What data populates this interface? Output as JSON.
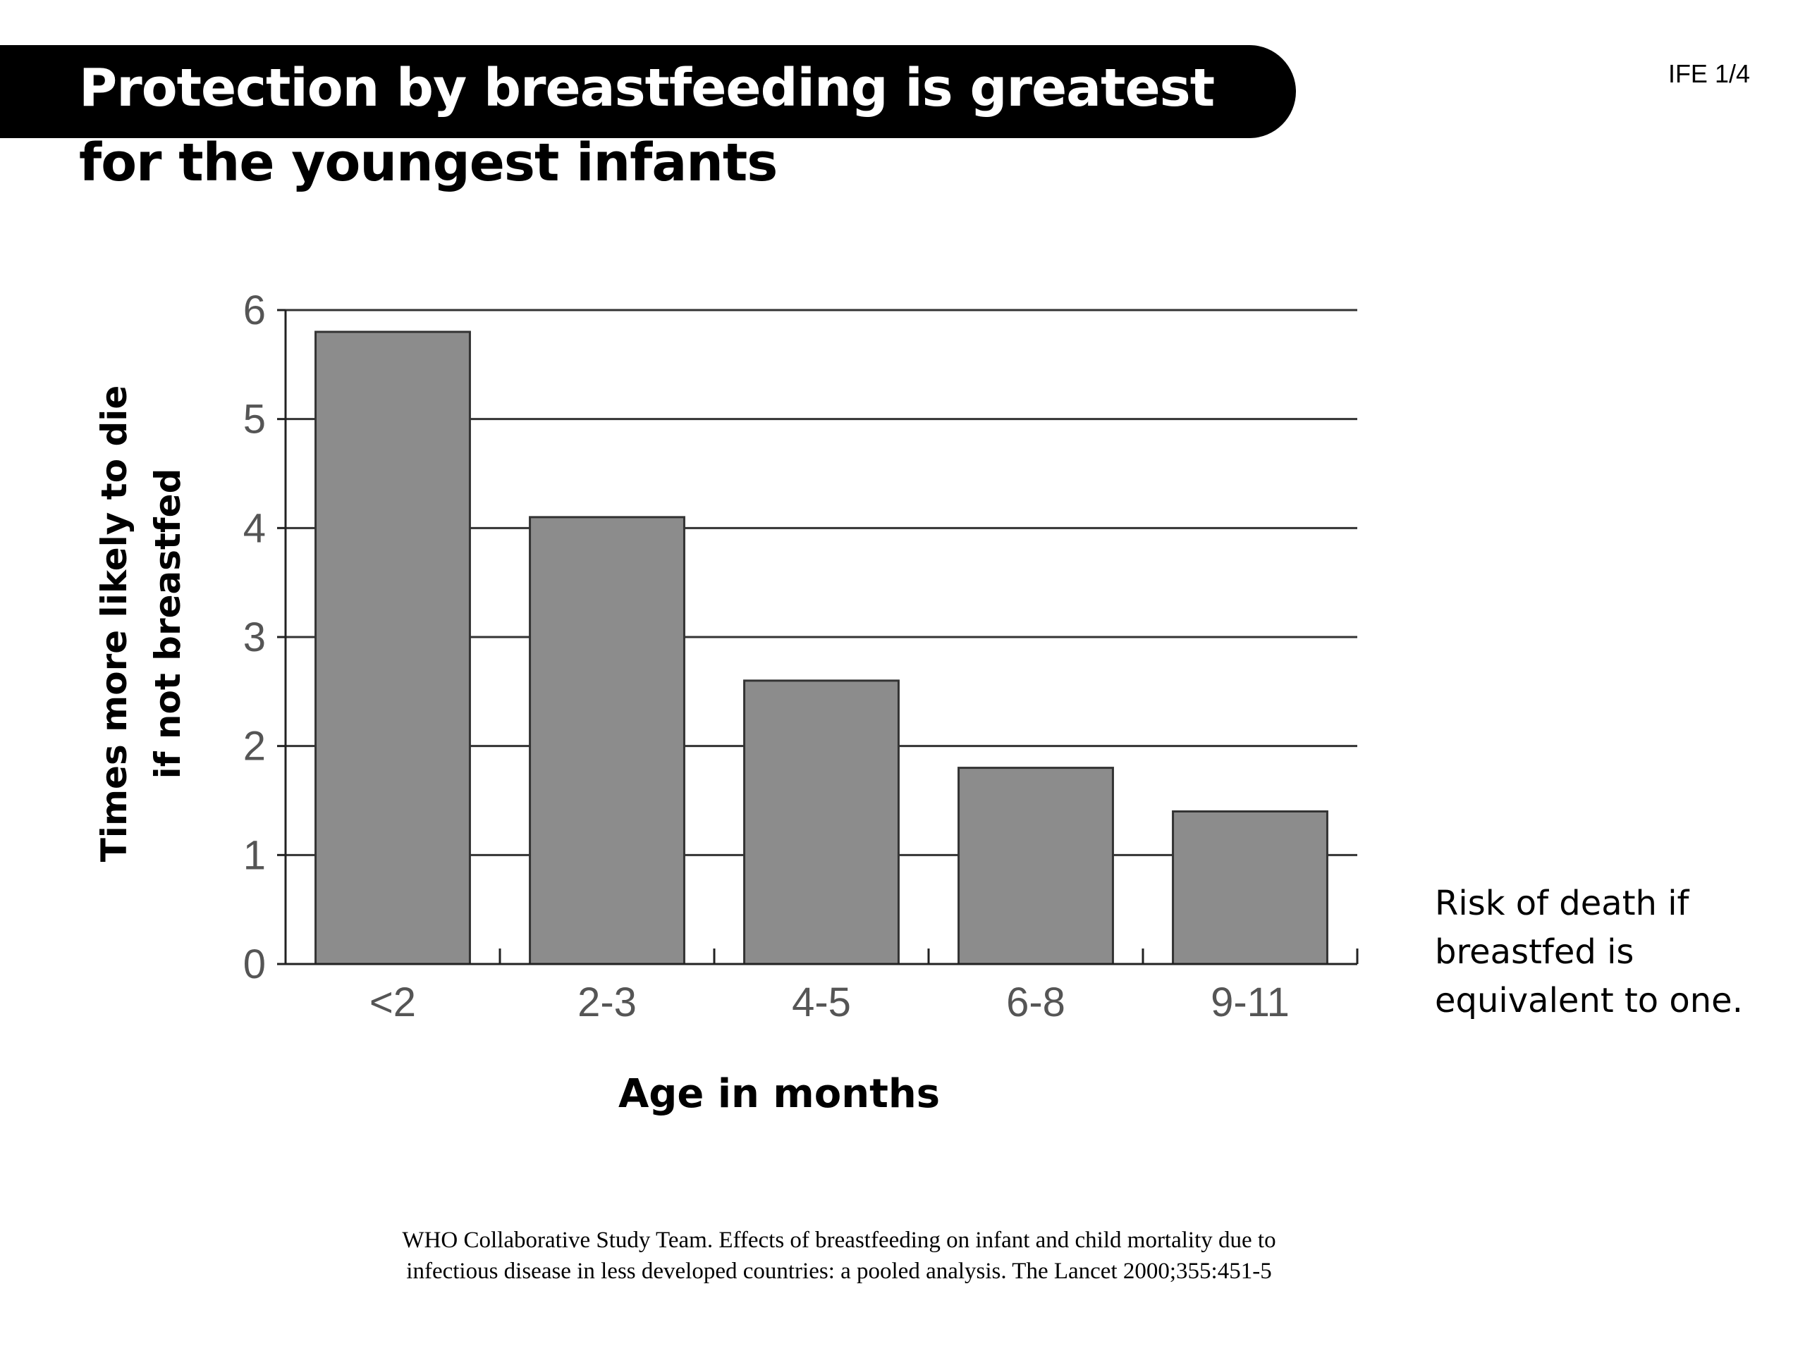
{
  "slide": {
    "title_line_1": "Protection by breastfeeding is greatest",
    "title_line_2": "for the youngest infants",
    "tag": "IFE 1/4",
    "side_note": "Risk of death if breastfed is equivalent to one.",
    "citation_line_1": "WHO Collaborative Study Team. Effects of breastfeeding on infant and child mortality due to",
    "citation_line_2": "infectious disease in less developed countries: a pooled analysis. The Lancet 2000;355:451-5",
    "title_bar_color": "#000000"
  },
  "chart_data": {
    "type": "bar",
    "title": "",
    "xlabel": "Age in months",
    "ylabel_line_1": "Times more likely to die",
    "ylabel_line_2": "if not breastfed",
    "categories": [
      "<2",
      "2-3",
      "4-5",
      "6-8",
      "9-11"
    ],
    "values": [
      5.8,
      4.1,
      2.6,
      1.8,
      1.4
    ],
    "ylim": [
      0,
      6
    ],
    "yticks": [
      0,
      1,
      2,
      3,
      4,
      5,
      6
    ],
    "grid": true,
    "legend": "none",
    "bar_color": "#8c8c8c",
    "bar_edge_color": "#333333",
    "grid_color": "#333333"
  }
}
